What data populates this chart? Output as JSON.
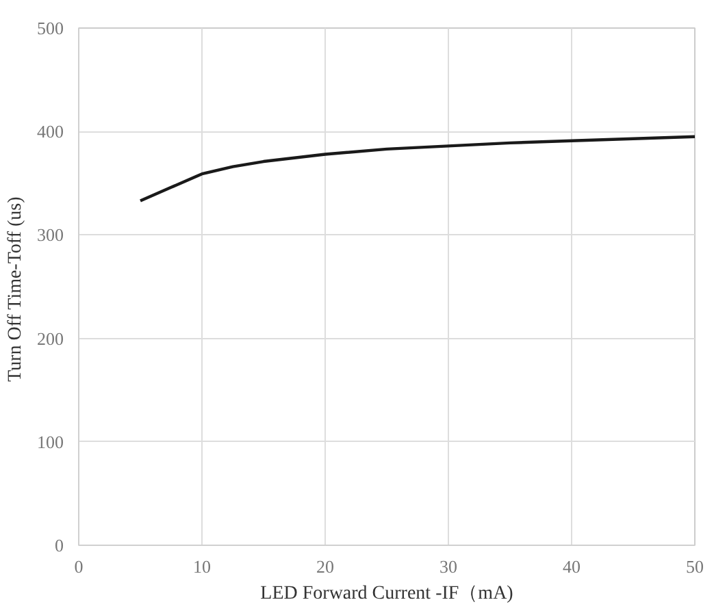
{
  "chart_data": {
    "type": "line",
    "xlabel": "LED Forward Current -IF（mA)",
    "ylabel": "Turn Off  Time-Toff (us)",
    "x": [
      5,
      7.5,
      10,
      12.5,
      15,
      20,
      25,
      30,
      35,
      40,
      45,
      50
    ],
    "series": [
      {
        "color": "#1a1a1a",
        "values": [
          333,
          346,
          359,
          366,
          371,
          378,
          383,
          386,
          389,
          391,
          393,
          395
        ]
      }
    ],
    "xlim": [
      0,
      50
    ],
    "xticks": [
      0,
      10,
      20,
      30,
      40,
      50
    ],
    "ylim": [
      0,
      500
    ],
    "yticks": [
      0,
      100,
      200,
      300,
      400,
      500
    ],
    "grid": true,
    "marker": "none",
    "line_style": "solid"
  }
}
